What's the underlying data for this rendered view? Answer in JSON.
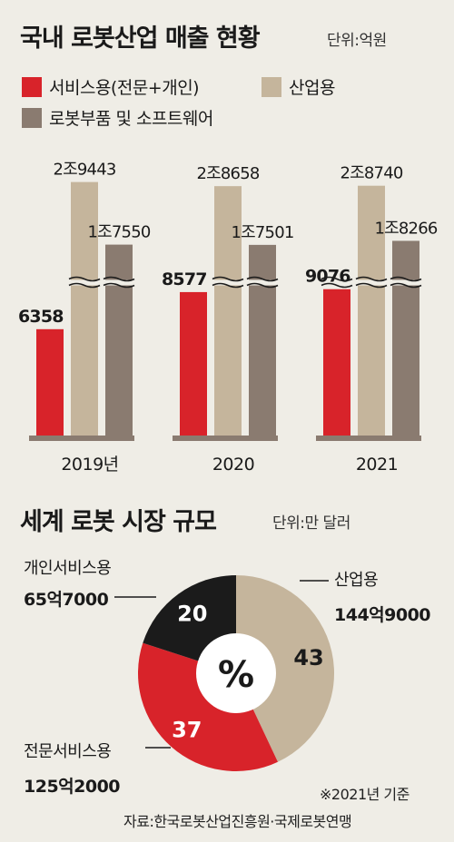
{
  "colors": {
    "service": "#d8232a",
    "industrial": "#c5b59c",
    "parts": "#8a7b70",
    "black": "#1b1b1b",
    "bg": "#efede6"
  },
  "domestic": {
    "title": "국내 로봇산업 매출 현황",
    "unit": "단위:억원",
    "legend": [
      "서비스용(전문+개인)",
      "산업용",
      "로봇부품 및 소프트웨어"
    ]
  },
  "global": {
    "title": "세계 로봇 시장 규모",
    "unit": "단위:만 달러",
    "center_symbol": "%",
    "labels": [
      {
        "name": "개인서비스용",
        "value": "65억7000"
      },
      {
        "name": "산업용",
        "value": "144억9000"
      },
      {
        "name": "전문서비스용",
        "value": "125억2000"
      }
    ],
    "note": "※2021년 기준",
    "source": "자료:한국로봇산업진흥원·국제로봇연맹"
  },
  "chart_data": [
    {
      "type": "bar",
      "title": "국내 로봇산업 매출 현황",
      "unit": "억원",
      "categories": [
        "2019년",
        "2020",
        "2021"
      ],
      "series": [
        {
          "name": "서비스용(전문+개인)",
          "values": [
            6358,
            8577,
            9076
          ],
          "labels": [
            "6358",
            "8577",
            "9076"
          ]
        },
        {
          "name": "산업용",
          "values": [
            29443,
            28658,
            28740
          ],
          "labels": [
            "2조9443",
            "2조8658",
            "2조8740"
          ]
        },
        {
          "name": "로봇부품 및 소프트웨어",
          "values": [
            17550,
            17501,
            18266
          ],
          "labels": [
            "1조7550",
            "1조7501",
            "1조8266"
          ]
        }
      ],
      "broken_axis": true
    },
    {
      "type": "pie",
      "title": "세계 로봇 시장 규모",
      "unit": "%",
      "slices": [
        {
          "name": "산업용",
          "value": 43,
          "label": "43"
        },
        {
          "name": "전문서비스용",
          "value": 37,
          "label": "37"
        },
        {
          "name": "개인서비스용",
          "value": 20,
          "label": "20"
        }
      ]
    }
  ]
}
